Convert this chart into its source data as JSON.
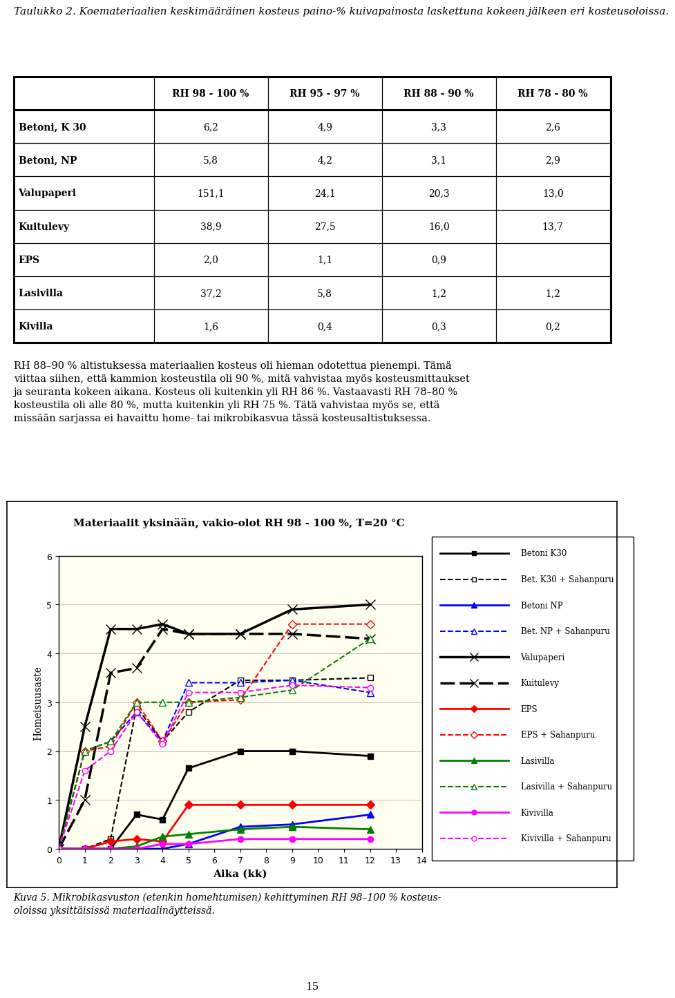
{
  "title_text": "Taulukko 2. Koemateriaalien keskimääräinen kosteus paino-% kuivapainosta laskettuna kokeen jälkeen eri kosteusoloissa.",
  "table_headers": [
    "",
    "RH 98 - 100 %",
    "RH 95 - 97 %",
    "RH 88 - 90 %",
    "RH 78 - 80 %"
  ],
  "table_rows": [
    [
      "Betoni, K 30",
      "6,2",
      "4,9",
      "3,3",
      "2,6"
    ],
    [
      "Betoni, NP",
      "5,8",
      "4,2",
      "3,1",
      "2,9"
    ],
    [
      "Valupaperi",
      "151,1",
      "24,1",
      "20,3",
      "13,0"
    ],
    [
      "Kuitulevy",
      "38,9",
      "27,5",
      "16,0",
      "13,7"
    ],
    [
      "EPS",
      "2,0",
      "1,1",
      "0,9",
      ""
    ],
    [
      "Lasivilla",
      "37,2",
      "5,8",
      "1,2",
      "1,2"
    ],
    [
      "Kivilla",
      "1,6",
      "0,4",
      "0,3",
      "0,2"
    ]
  ],
  "para_lines": [
    "RH 88–90 % altistuksessa materiaalien kosteus oli hieman odotettua pienempi. Tämä",
    "viittaa siihen, että kammion kosteustila oli 90 %, mitä vahvistaa myös kosteusmittaukset",
    "ja seuranta kokeen aikana. Kosteus oli kuitenkin yli RH 86 %. Vastaavasti RH 78–80 %",
    "kosteustila oli alle 80 %, mutta kuitenkin yli RH 75 %. Tätä vahvistaa myös se, että",
    "missään sarjassa ei havaittu home- tai mikrobikasvua tässä kosteusaltistuksessa."
  ],
  "chart_title": "Materiaalit yksinään, vakio-olot RH 98 - 100 %, T=20 °C",
  "xlabel": "Aika (kk)",
  "ylabel": "Homeisuusaste",
  "ylim": [
    0,
    6
  ],
  "xlim": [
    0,
    14
  ],
  "caption_lines": [
    "Kuva 5. Mikrobikasvuston (etenkin homehtumisen) kehittyminen RH 98–100 % kosteus-",
    "oloissa yksittäisissä materiaalinäytteissä."
  ],
  "page_num": "15",
  "bg_color": "#FFFFF0",
  "series": [
    {
      "label": "Betoni K30",
      "color": "#000000",
      "marker": "s",
      "linestyle": "-",
      "linewidth": 2,
      "markersize": 6,
      "x": [
        0,
        1,
        2,
        3,
        4,
        5,
        7,
        9,
        12
      ],
      "y": [
        0,
        0,
        0,
        0.7,
        0.6,
        1.65,
        2.0,
        2.0,
        1.9
      ]
    },
    {
      "label": "Bet. K30 + Sahanpuru",
      "color": "#000000",
      "marker": "s",
      "linestyle": "--",
      "linewidth": 1.5,
      "markersize": 6,
      "markerfacecolor": "white",
      "x": [
        0,
        1,
        2,
        3,
        4,
        5,
        7,
        9,
        12
      ],
      "y": [
        0,
        0,
        0.2,
        2.9,
        2.2,
        2.8,
        3.45,
        3.45,
        3.5
      ]
    },
    {
      "label": "Betoni NP",
      "color": "#0000FF",
      "marker": "^",
      "linestyle": "-",
      "linewidth": 2,
      "markersize": 7,
      "x": [
        0,
        1,
        2,
        3,
        4,
        5,
        7,
        9,
        12
      ],
      "y": [
        0,
        0,
        0,
        0,
        0,
        0.1,
        0.45,
        0.5,
        0.7
      ]
    },
    {
      "label": "Bet. NP + Sahanpuru",
      "color": "#0000FF",
      "marker": "^",
      "linestyle": "--",
      "linewidth": 1.5,
      "markersize": 7,
      "markerfacecolor": "white",
      "x": [
        0,
        1,
        2,
        3,
        4,
        5,
        7,
        9,
        12
      ],
      "y": [
        0,
        2.0,
        2.2,
        2.8,
        2.2,
        3.4,
        3.4,
        3.45,
        3.2
      ]
    },
    {
      "label": "Valupaperi",
      "color": "#000000",
      "marker": "x",
      "linestyle": "-",
      "linewidth": 2.5,
      "markersize": 10,
      "x": [
        0,
        1,
        2,
        3,
        4,
        5,
        7,
        9,
        12
      ],
      "y": [
        0,
        2.5,
        4.5,
        4.5,
        4.6,
        4.4,
        4.4,
        4.9,
        5.0
      ]
    },
    {
      "label": "Kuitulevy",
      "color": "#000000",
      "marker": "x",
      "linestyle": "-",
      "linewidth": 2.5,
      "markersize": 10,
      "dashes": [
        6,
        2
      ],
      "x": [
        0,
        1,
        2,
        3,
        4,
        5,
        7,
        9,
        12
      ],
      "y": [
        0,
        1.0,
        3.6,
        3.7,
        4.5,
        4.4,
        4.4,
        4.4,
        4.3
      ]
    },
    {
      "label": "EPS",
      "color": "#FF0000",
      "marker": "D",
      "linestyle": "-",
      "linewidth": 2,
      "markersize": 6,
      "x": [
        0,
        1,
        2,
        3,
        4,
        5,
        7,
        9,
        12
      ],
      "y": [
        0,
        0,
        0.15,
        0.2,
        0.15,
        0.9,
        0.9,
        0.9,
        0.9
      ]
    },
    {
      "label": "EPS + Sahanpuru",
      "color": "#FF0000",
      "marker": "D",
      "linestyle": "--",
      "linewidth": 1.5,
      "markersize": 6,
      "markerfacecolor": "white",
      "x": [
        0,
        1,
        2,
        3,
        4,
        5,
        7,
        9,
        12
      ],
      "y": [
        0,
        2.0,
        2.1,
        3.0,
        2.2,
        3.0,
        3.05,
        4.6,
        4.6
      ]
    },
    {
      "label": "Lasivilla",
      "color": "#008000",
      "marker": "^",
      "linestyle": "-",
      "linewidth": 2,
      "markersize": 7,
      "x": [
        0,
        1,
        2,
        3,
        4,
        5,
        7,
        9,
        12
      ],
      "y": [
        0,
        0,
        0,
        0.05,
        0.25,
        0.3,
        0.4,
        0.45,
        0.4
      ]
    },
    {
      "label": "Lasivilla + Sahanpuru",
      "color": "#008000",
      "marker": "^",
      "linestyle": "--",
      "linewidth": 1.5,
      "markersize": 7,
      "markerfacecolor": "white",
      "x": [
        0,
        1,
        2,
        3,
        4,
        5,
        7,
        9,
        12
      ],
      "y": [
        0,
        2.0,
        2.2,
        3.0,
        3.0,
        3.0,
        3.1,
        3.25,
        4.3
      ]
    },
    {
      "label": "Kivivilla",
      "color": "#FF00FF",
      "marker": "o",
      "linestyle": "-",
      "linewidth": 2,
      "markersize": 6,
      "x": [
        0,
        1,
        2,
        3,
        4,
        5,
        7,
        9,
        12
      ],
      "y": [
        0,
        0,
        0,
        0,
        0.1,
        0.1,
        0.2,
        0.2,
        0.2
      ]
    },
    {
      "label": "Kivivilla + Sahanpuru",
      "color": "#FF00FF",
      "marker": "o",
      "linestyle": "--",
      "linewidth": 1.5,
      "markersize": 6,
      "markerfacecolor": "white",
      "x": [
        0,
        1,
        2,
        3,
        4,
        5,
        7,
        9,
        12
      ],
      "y": [
        0,
        1.6,
        2.0,
        2.8,
        2.15,
        3.2,
        3.2,
        3.35,
        3.3
      ]
    }
  ]
}
